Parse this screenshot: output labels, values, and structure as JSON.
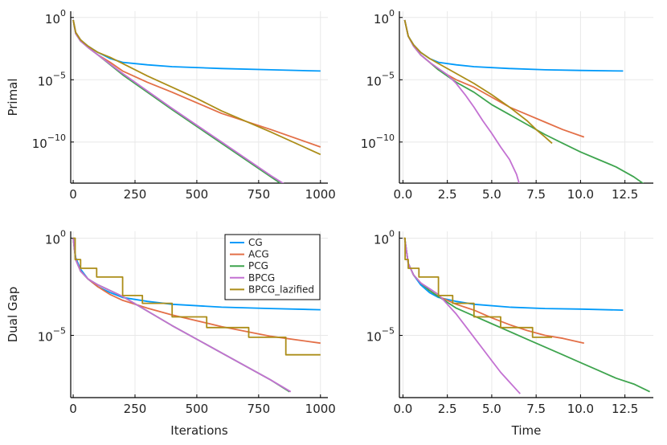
{
  "chart_data": [
    {
      "id": "primal-iter",
      "type": "line",
      "scale_y": "log10",
      "xlabel": "",
      "ylabel": "Primal",
      "xlim": [
        -10,
        1030
      ],
      "ylim_log10": [
        -13.3,
        0.5
      ],
      "xticks": [
        0,
        250,
        500,
        750,
        1000
      ],
      "xtick_labels": [
        "0",
        "250",
        "500",
        "750",
        "1000"
      ],
      "yticks_log10": [
        0,
        -5,
        -10
      ],
      "ytick_labels": [
        {
          "base": "10",
          "exp": "0"
        },
        {
          "base": "10",
          "exp": "−5"
        },
        {
          "base": "10",
          "exp": "−10"
        }
      ],
      "grid": true,
      "legend": false,
      "series": [
        {
          "name": "CG",
          "x": [
            0,
            10,
            30,
            60,
            100,
            150,
            200,
            300,
            400,
            600,
            800,
            1000
          ],
          "y_log10": [
            -0.2,
            -1.2,
            -1.8,
            -2.3,
            -2.8,
            -3.3,
            -3.6,
            -3.8,
            -3.95,
            -4.1,
            -4.2,
            -4.3
          ]
        },
        {
          "name": "ACG",
          "x": [
            0,
            10,
            30,
            60,
            100,
            150,
            200,
            300,
            400,
            600,
            800,
            1000
          ],
          "y_log10": [
            -0.2,
            -1.2,
            -1.8,
            -2.4,
            -3.0,
            -3.6,
            -4.3,
            -5.2,
            -6.0,
            -7.7,
            -9.0,
            -10.4
          ]
        },
        {
          "name": "PCG",
          "x": [
            0,
            10,
            30,
            60,
            100,
            200,
            400,
            600,
            800,
            875
          ],
          "y_log10": [
            -0.2,
            -1.3,
            -1.9,
            -2.4,
            -3.0,
            -4.6,
            -7.4,
            -10.1,
            -12.8,
            -13.8
          ]
        },
        {
          "name": "BPCG",
          "x": [
            0,
            10,
            30,
            60,
            100,
            200,
            400,
            600,
            800,
            880
          ],
          "y_log10": [
            -0.2,
            -1.3,
            -1.9,
            -2.4,
            -3.0,
            -4.5,
            -7.3,
            -10.0,
            -12.7,
            -13.7
          ]
        },
        {
          "name": "BPCG_lazified",
          "x": [
            0,
            10,
            30,
            60,
            100,
            150,
            200,
            300,
            400,
            500,
            600,
            800,
            1000
          ],
          "y_log10": [
            -0.2,
            -1.2,
            -1.8,
            -2.3,
            -2.8,
            -3.2,
            -3.7,
            -4.7,
            -5.6,
            -6.5,
            -7.5,
            -9.2,
            -11.0
          ]
        }
      ]
    },
    {
      "id": "primal-time",
      "type": "line",
      "scale_y": "log10",
      "xlabel": "",
      "ylabel": "",
      "xlim": [
        -0.2,
        14.1
      ],
      "ylim_log10": [
        -13.3,
        0.5
      ],
      "xticks": [
        0,
        2.5,
        5,
        7.5,
        10,
        12.5
      ],
      "xtick_labels": [
        "0.0",
        "2.5",
        "5.0",
        "7.5",
        "10.0",
        "12.5"
      ],
      "yticks_log10": [
        0,
        -5,
        -10
      ],
      "ytick_labels": [
        {
          "base": "10",
          "exp": "0"
        },
        {
          "base": "10",
          "exp": "−5"
        },
        {
          "base": "10",
          "exp": "−10"
        }
      ],
      "grid": true,
      "legend": false,
      "series": [
        {
          "name": "CG",
          "x": [
            0.1,
            0.3,
            0.6,
            1.0,
            1.5,
            2.0,
            3.0,
            4.0,
            6.0,
            8.0,
            10.0,
            12.4
          ],
          "y_log10": [
            -0.2,
            -1.5,
            -2.2,
            -2.8,
            -3.3,
            -3.6,
            -3.8,
            -3.95,
            -4.1,
            -4.2,
            -4.25,
            -4.3
          ]
        },
        {
          "name": "ACG",
          "x": [
            0.1,
            0.3,
            0.6,
            1.0,
            1.5,
            2.0,
            3.0,
            4.0,
            5.0,
            6.0,
            7.0,
            8.0,
            9.0,
            10.2
          ],
          "y_log10": [
            -0.2,
            -1.5,
            -2.3,
            -3.0,
            -3.6,
            -4.2,
            -5.0,
            -5.6,
            -6.4,
            -7.2,
            -7.8,
            -8.4,
            -9.0,
            -9.6
          ]
        },
        {
          "name": "PCG",
          "x": [
            0.1,
            0.3,
            0.6,
            1.0,
            1.5,
            2.0,
            3.0,
            4.0,
            5.0,
            6.0,
            7.0,
            8.0,
            9.0,
            10.0,
            11.0,
            12.0,
            13.0,
            13.9
          ],
          "y_log10": [
            -0.2,
            -1.5,
            -2.3,
            -3.0,
            -3.6,
            -4.2,
            -5.2,
            -6.0,
            -7.0,
            -7.8,
            -8.6,
            -9.4,
            -10.1,
            -10.8,
            -11.4,
            -12.0,
            -12.8,
            -13.7
          ]
        },
        {
          "name": "BPCG",
          "x": [
            0.1,
            0.3,
            0.6,
            1.0,
            1.5,
            2.0,
            2.5,
            3.0,
            3.5,
            4.0,
            4.5,
            5.0,
            5.5,
            6.0,
            6.4,
            6.6
          ],
          "y_log10": [
            -0.2,
            -1.5,
            -2.3,
            -3.0,
            -3.6,
            -4.1,
            -4.6,
            -5.3,
            -6.2,
            -7.2,
            -8.3,
            -9.3,
            -10.4,
            -11.4,
            -12.6,
            -13.6
          ]
        },
        {
          "name": "BPCG_lazified",
          "x": [
            0.1,
            0.3,
            0.6,
            1.0,
            1.5,
            2.0,
            3.0,
            4.0,
            5.0,
            6.0,
            7.0,
            7.5,
            8.0,
            8.4
          ],
          "y_log10": [
            -0.2,
            -1.5,
            -2.2,
            -2.8,
            -3.3,
            -3.7,
            -4.5,
            -5.3,
            -6.2,
            -7.2,
            -8.3,
            -9.0,
            -9.6,
            -10.1
          ]
        }
      ]
    },
    {
      "id": "dualgap-iter",
      "type": "line",
      "scale_y": "log10",
      "xlabel": "Iterations",
      "ylabel": "Dual Gap",
      "xlim": [
        -10,
        1030
      ],
      "ylim_log10": [
        -8.2,
        0.35
      ],
      "xticks": [
        0,
        250,
        500,
        750,
        1000
      ],
      "xtick_labels": [
        "0",
        "250",
        "500",
        "750",
        "1000"
      ],
      "yticks_log10": [
        0,
        -5
      ],
      "ytick_labels": [
        {
          "base": "10",
          "exp": "0"
        },
        {
          "base": "10",
          "exp": "−5"
        }
      ],
      "grid": true,
      "legend": true,
      "legend_position": "top-right",
      "series": [
        {
          "name": "CG",
          "x": [
            0,
            10,
            30,
            60,
            100,
            150,
            200,
            300,
            400,
            600,
            800,
            1000
          ],
          "y_log10": [
            0.0,
            -1.0,
            -1.6,
            -2.1,
            -2.5,
            -2.8,
            -3.05,
            -3.25,
            -3.4,
            -3.55,
            -3.62,
            -3.68
          ]
        },
        {
          "name": "ACG",
          "x": [
            0,
            10,
            30,
            60,
            100,
            150,
            200,
            300,
            400,
            600,
            800,
            1000
          ],
          "y_log10": [
            0.0,
            -1.1,
            -1.7,
            -2.1,
            -2.5,
            -2.9,
            -3.2,
            -3.6,
            -3.95,
            -4.55,
            -5.05,
            -5.4
          ]
        },
        {
          "name": "PCG",
          "x": [
            0,
            10,
            30,
            60,
            100,
            200,
            400,
            600,
            800,
            875
          ],
          "y_log10": [
            0.0,
            -1.1,
            -1.7,
            -2.1,
            -2.4,
            -3.0,
            -4.5,
            -5.9,
            -7.3,
            -7.9
          ]
        },
        {
          "name": "BPCG",
          "x": [
            0,
            10,
            30,
            60,
            100,
            200,
            400,
            600,
            800,
            880
          ],
          "y_log10": [
            0.0,
            -1.1,
            -1.7,
            -2.1,
            -2.4,
            -3.0,
            -4.5,
            -5.9,
            -7.3,
            -7.9
          ]
        },
        {
          "name": "BPCG_lazified",
          "x": [
            0,
            8,
            8,
            30,
            30,
            95,
            95,
            200,
            200,
            280,
            280,
            400,
            400,
            540,
            540,
            710,
            710,
            860,
            860,
            1000
          ],
          "y_log10": [
            0.0,
            0.0,
            -1.1,
            -1.1,
            -1.55,
            -1.55,
            -2.0,
            -2.0,
            -2.95,
            -2.95,
            -3.35,
            -3.35,
            -4.05,
            -4.05,
            -4.6,
            -4.6,
            -5.1,
            -5.1,
            -6.0,
            -6.0
          ],
          "step": true
        }
      ]
    },
    {
      "id": "dualgap-time",
      "type": "line",
      "scale_y": "log10",
      "xlabel": "Time",
      "ylabel": "",
      "xlim": [
        -0.2,
        14.1
      ],
      "ylim_log10": [
        -8.2,
        0.35
      ],
      "xticks": [
        0,
        2.5,
        5,
        7.5,
        10,
        12.5
      ],
      "xtick_labels": [
        "0.0",
        "2.5",
        "5.0",
        "7.5",
        "10.0",
        "12.5"
      ],
      "yticks_log10": [
        0,
        -5
      ],
      "ytick_labels": [
        {
          "base": "10",
          "exp": "0"
        },
        {
          "base": "10",
          "exp": "−5"
        }
      ],
      "grid": true,
      "legend": false,
      "series": [
        {
          "name": "CG",
          "x": [
            0.1,
            0.3,
            0.6,
            1.0,
            1.5,
            2.0,
            3.0,
            4.0,
            6.0,
            8.0,
            10.0,
            12.4
          ],
          "y_log10": [
            0.0,
            -1.3,
            -1.9,
            -2.4,
            -2.8,
            -3.05,
            -3.25,
            -3.4,
            -3.55,
            -3.62,
            -3.65,
            -3.7
          ]
        },
        {
          "name": "ACG",
          "x": [
            0.1,
            0.3,
            0.6,
            1.0,
            1.5,
            2.0,
            3.0,
            4.0,
            5.0,
            6.0,
            7.0,
            8.0,
            9.0,
            10.2
          ],
          "y_log10": [
            0.0,
            -1.3,
            -1.9,
            -2.3,
            -2.7,
            -3.0,
            -3.4,
            -3.7,
            -4.1,
            -4.45,
            -4.75,
            -5.0,
            -5.15,
            -5.4
          ]
        },
        {
          "name": "PCG",
          "x": [
            0.1,
            0.3,
            0.6,
            1.0,
            1.5,
            2.0,
            3.0,
            4.0,
            5.0,
            6.0,
            7.0,
            8.0,
            9.0,
            10.0,
            11.0,
            12.0,
            13.0,
            13.9
          ],
          "y_log10": [
            0.0,
            -1.3,
            -1.9,
            -2.3,
            -2.7,
            -3.0,
            -3.6,
            -4.0,
            -4.4,
            -4.8,
            -5.2,
            -5.6,
            -6.0,
            -6.4,
            -6.8,
            -7.2,
            -7.5,
            -7.9
          ]
        },
        {
          "name": "BPCG",
          "x": [
            0.1,
            0.3,
            0.6,
            1.0,
            1.5,
            2.0,
            2.5,
            3.0,
            3.5,
            4.0,
            4.5,
            5.0,
            5.5,
            6.0,
            6.4,
            6.6
          ],
          "y_log10": [
            0.0,
            -1.3,
            -1.9,
            -2.3,
            -2.6,
            -2.9,
            -3.4,
            -3.9,
            -4.5,
            -5.1,
            -5.7,
            -6.3,
            -6.9,
            -7.4,
            -7.8,
            -8.0
          ]
        },
        {
          "name": "BPCG_lazified",
          "x": [
            0.05,
            0.12,
            0.12,
            0.3,
            0.3,
            0.9,
            0.9,
            2.0,
            2.0,
            2.8,
            2.8,
            4.0,
            4.0,
            5.5,
            5.5,
            7.3,
            7.3,
            8.4
          ],
          "y_log10": [
            0.0,
            0.0,
            -1.1,
            -1.1,
            -1.55,
            -1.55,
            -2.0,
            -2.0,
            -2.95,
            -2.95,
            -3.35,
            -3.35,
            -4.05,
            -4.05,
            -4.6,
            -4.6,
            -5.1,
            -5.1
          ],
          "step": true
        }
      ]
    }
  ],
  "series_colors": {
    "CG": "#009AFA",
    "ACG": "#E36F47",
    "PCG": "#3EA44E",
    "BPCG": "#C371D2",
    "BPCG_lazified": "#AC8D18"
  },
  "axis_color": "#000000",
  "grid_color": "#E8E8E8"
}
